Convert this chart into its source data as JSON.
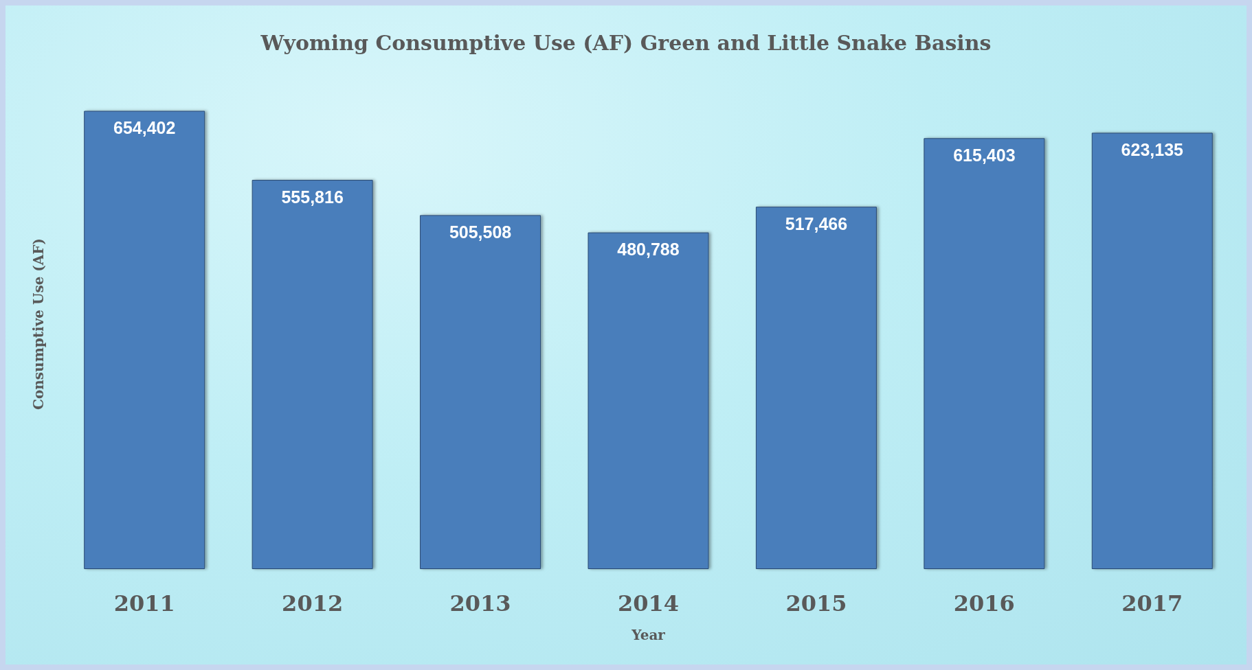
{
  "chart_data": {
    "type": "bar",
    "title": "Wyoming Consumptive Use (AF) Green and Little Snake Basins",
    "xlabel": "Year",
    "ylabel": "Consumptive Use (AF)",
    "categories": [
      "2011",
      "2012",
      "2013",
      "2014",
      "2015",
      "2016",
      "2017"
    ],
    "values": [
      654402,
      555816,
      505508,
      480788,
      517466,
      615403,
      623135
    ],
    "value_labels": [
      "654,402",
      "555,816",
      "505,508",
      "480,788",
      "517,466",
      "615,403",
      "623,135"
    ],
    "color": "#4a7ebb",
    "tick_labels": "x"
  }
}
